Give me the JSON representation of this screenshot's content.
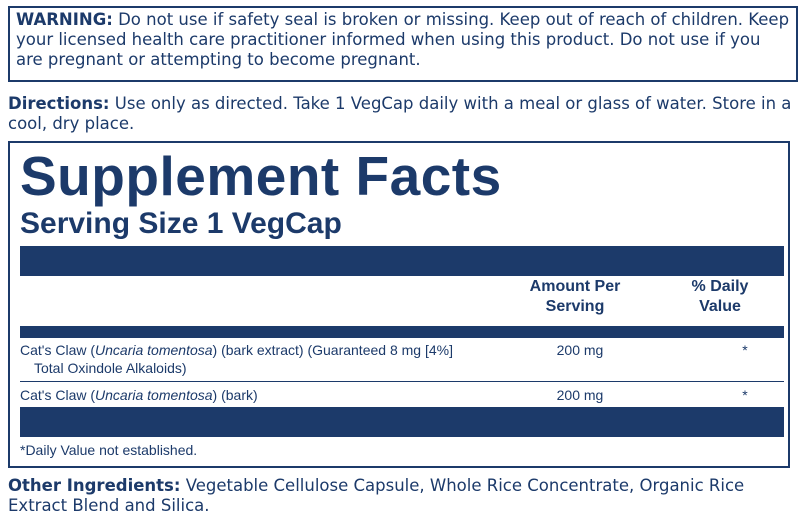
{
  "warning": {
    "label": "WARNING:",
    "text": "Do not use if safety seal is broken or missing. Keep out of reach of children. Keep your licensed health care practitioner informed when using this product. Do not use if you are pregnant or attempting to become pregnant."
  },
  "directions": {
    "label": "Directions:",
    "text": "Use only as directed. Take 1 VegCap daily with a meal or glass of water. Store in a cool, dry place."
  },
  "facts": {
    "title": "Supplement Facts",
    "serving": "Serving Size 1 VegCap",
    "headers": [
      "Amount Per Serving",
      "% Daily Value"
    ],
    "rows": [
      {
        "prefix": "Cat's Claw (",
        "italic": "Uncaria tomentosa",
        "suffix": ") (bark extract) (Guaranteed 8 mg [4%]",
        "subline": "Total Oxindole Alkaloids)",
        "amount": "200 mg",
        "daily_value": "*"
      },
      {
        "prefix": "Cat's Claw (",
        "italic": "Uncaria tomentosa",
        "suffix": ") (bark)",
        "amount": "200 mg",
        "daily_value": "*"
      }
    ],
    "footnote": "*Daily Value not established."
  },
  "other_ingredients": {
    "label": "Other Ingredients:",
    "text": "Vegetable Cellulose Capsule, Whole Rice Concentrate, Organic Rice Extract Blend and Silica."
  }
}
